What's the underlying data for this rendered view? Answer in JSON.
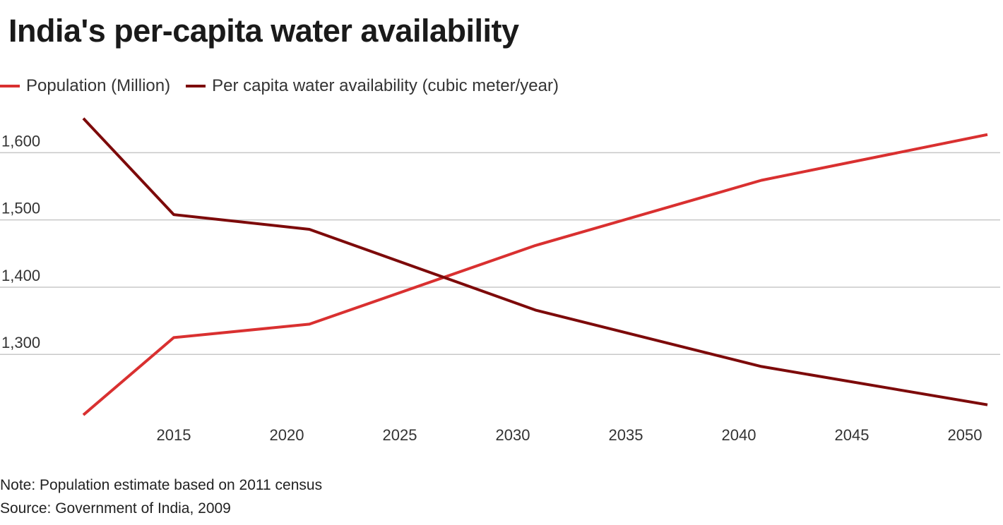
{
  "colors": {
    "population": "#d93030",
    "water": "#7d0a0a",
    "grid": "#c8c8c8",
    "tick": "#333333"
  },
  "chart_data": {
    "type": "line",
    "title": "India's per-capita water availability",
    "x": [
      2011,
      2015,
      2021,
      2025,
      2031,
      2035,
      2041,
      2045,
      2051
    ],
    "xticks": [
      2015,
      2020,
      2025,
      2030,
      2035,
      2040,
      2045,
      2050
    ],
    "xlim": [
      2011,
      2051
    ],
    "yticks": [
      1300,
      1400,
      1500,
      1600
    ],
    "ytick_labels": [
      "1,300",
      "1,400",
      "1,500",
      "1,600"
    ],
    "ylim": [
      1210,
      1655
    ],
    "series": [
      {
        "name": "Population (Million)",
        "key": "population",
        "points": [
          [
            2011,
            1210
          ],
          [
            2015,
            1325
          ],
          [
            2021,
            1345
          ],
          [
            2031,
            1462
          ],
          [
            2041,
            1559
          ],
          [
            2051,
            1627
          ]
        ]
      },
      {
        "name": "Per capita water availability (cubic meter/year)",
        "key": "water",
        "points": [
          [
            2011,
            1651
          ],
          [
            2015,
            1508
          ],
          [
            2021,
            1486
          ],
          [
            2031,
            1366
          ],
          [
            2041,
            1282
          ],
          [
            2051,
            1225
          ]
        ]
      }
    ]
  },
  "notes": {
    "note": "Note: Population estimate based on 2011 census",
    "source": "Source: Government of India, 2009"
  }
}
